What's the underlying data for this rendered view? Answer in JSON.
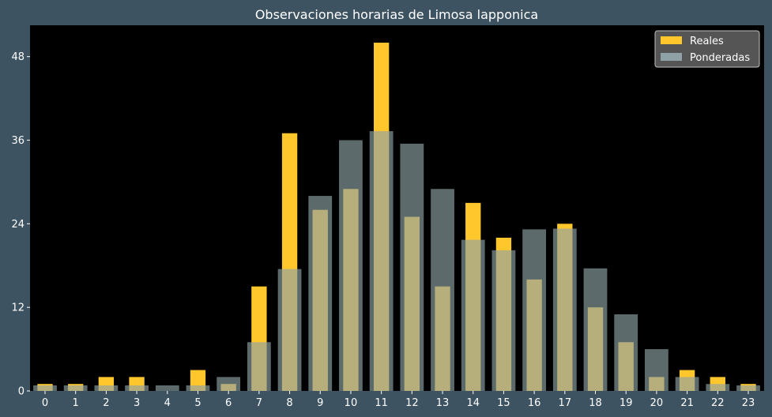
{
  "chart_data": {
    "type": "bar",
    "title": "Observaciones horarias de Limosa lapponica",
    "xlabel": "",
    "ylabel": "",
    "categories": [
      "0",
      "1",
      "2",
      "3",
      "4",
      "5",
      "6",
      "7",
      "8",
      "9",
      "10",
      "11",
      "12",
      "13",
      "14",
      "15",
      "16",
      "17",
      "18",
      "19",
      "20",
      "21",
      "22",
      "23"
    ],
    "ylim": [
      0,
      52.5
    ],
    "yticks": [
      0,
      12,
      24,
      36,
      48
    ],
    "grid": false,
    "legend_position": "top-right",
    "series": [
      {
        "name": "Reales",
        "color": "#ffc72c",
        "values": [
          1,
          1,
          2,
          2,
          0,
          3,
          1,
          15,
          37,
          26,
          29,
          50,
          25,
          15,
          27,
          22,
          16,
          24,
          12,
          7,
          2,
          3,
          2,
          1
        ]
      },
      {
        "name": "Ponderadas",
        "color": "#8fa3a6",
        "opacity": 0.65,
        "values": [
          0.8,
          0.8,
          0.8,
          0.8,
          0.8,
          0.8,
          2,
          7,
          17.5,
          28,
          36,
          37.3,
          35.5,
          29,
          21.7,
          20.2,
          23.2,
          23.3,
          17.6,
          11,
          6,
          2,
          1,
          0.8
        ]
      }
    ],
    "colors": {
      "background": "#3d5361",
      "plot_background": "#000000",
      "text": "#ffffff",
      "legend_background": "#555555"
    }
  }
}
